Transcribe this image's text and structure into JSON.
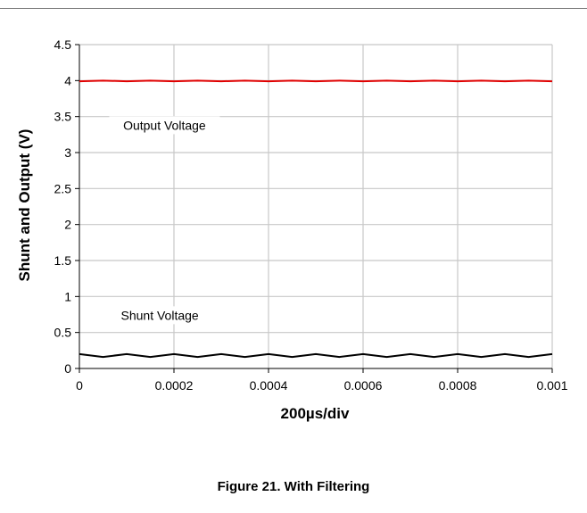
{
  "caption": "Figure 21. With Filtering",
  "chart_data": {
    "type": "line",
    "xlabel": "200µs/div",
    "ylabel": "Shunt and Output (V)",
    "xlim": [
      0,
      0.001
    ],
    "ylim": [
      0,
      4.5
    ],
    "x_ticks": [
      "0",
      "0.0002",
      "0.0004",
      "0.0006",
      "0.0008",
      "0.001"
    ],
    "x_tick_values": [
      0,
      0.0002,
      0.0004,
      0.0006,
      0.0008,
      0.001
    ],
    "y_ticks": [
      "0",
      "0.5",
      "1",
      "1.5",
      "2",
      "2.5",
      "3",
      "3.5",
      "4",
      "4.5"
    ],
    "y_tick_values": [
      0,
      0.5,
      1,
      1.5,
      2,
      2.5,
      3,
      3.5,
      4,
      4.5
    ],
    "grid": true,
    "annotations": [
      {
        "text": "Output Voltage",
        "x": 0.00018,
        "y": 3.33
      },
      {
        "text": "Shunt Voltage",
        "x": 0.00017,
        "y": 0.69
      }
    ],
    "series": [
      {
        "color": "#e00000",
        "x": [
          0,
          5e-05,
          0.0001,
          0.00015,
          0.0002,
          0.00025,
          0.0003,
          0.00035,
          0.0004,
          0.00045,
          0.0005,
          0.00055,
          0.0006,
          0.00065,
          0.0007,
          0.00075,
          0.0008,
          0.00085,
          0.0009,
          0.00095,
          0.001
        ],
        "y": [
          3.99,
          4.0,
          3.99,
          4.0,
          3.99,
          4.0,
          3.99,
          4.0,
          3.99,
          4.0,
          3.99,
          4.0,
          3.99,
          4.0,
          3.99,
          4.0,
          3.99,
          4.0,
          3.99,
          4.0,
          3.99
        ]
      },
      {
        "color": "#000000",
        "x": [
          0,
          5e-05,
          0.0001,
          0.00015,
          0.0002,
          0.00025,
          0.0003,
          0.00035,
          0.0004,
          0.00045,
          0.0005,
          0.00055,
          0.0006,
          0.00065,
          0.0007,
          0.00075,
          0.0008,
          0.00085,
          0.0009,
          0.00095,
          0.001
        ],
        "y": [
          0.2,
          0.16,
          0.2,
          0.16,
          0.2,
          0.16,
          0.2,
          0.16,
          0.2,
          0.16,
          0.2,
          0.16,
          0.2,
          0.16,
          0.2,
          0.16,
          0.2,
          0.16,
          0.2,
          0.16,
          0.2
        ]
      }
    ]
  }
}
